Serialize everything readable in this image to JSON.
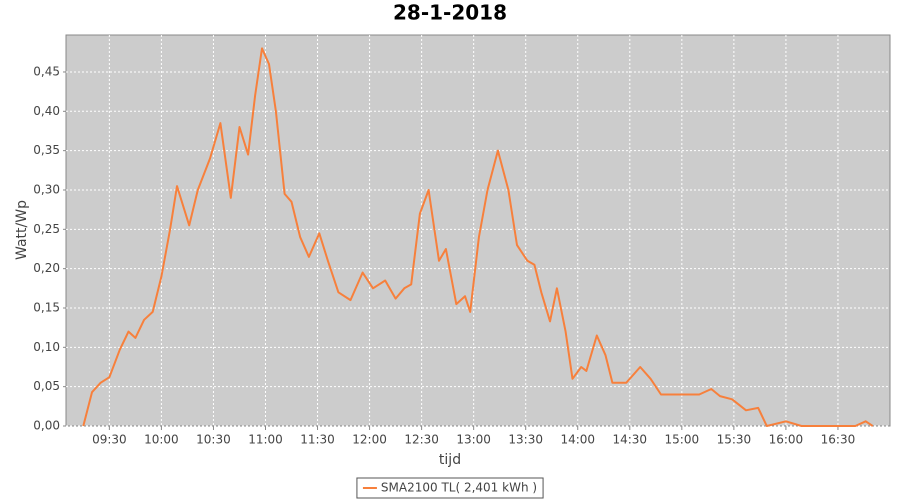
{
  "chart_data": {
    "type": "line",
    "title": "28-1-2018",
    "x_label": "tijd",
    "y_label": "Watt/Wp",
    "x": [
      "09:15",
      "09:20",
      "09:25",
      "09:30",
      "09:36",
      "09:41",
      "09:45",
      "09:50",
      "09:55",
      "10:00",
      "10:05",
      "10:09",
      "10:16",
      "10:21",
      "10:28",
      "10:34",
      "10:40",
      "10:45",
      "10:50",
      "10:54",
      "10:58",
      "11:02",
      "11:06",
      "11:11",
      "11:15",
      "11:20",
      "11:25",
      "11:31",
      "11:36",
      "11:42",
      "11:49",
      "11:56",
      "12:02",
      "12:09",
      "12:15",
      "12:20",
      "12:24",
      "12:29",
      "12:34",
      "12:40",
      "12:44",
      "12:50",
      "12:55",
      "12:58",
      "13:03",
      "13:08",
      "13:14",
      "13:20",
      "13:25",
      "13:31",
      "13:35",
      "13:39",
      "13:44",
      "13:48",
      "13:53",
      "13:57",
      "14:02",
      "14:05",
      "14:11",
      "14:16",
      "14:20",
      "14:28",
      "14:36",
      "14:42",
      "14:48",
      "15:05",
      "15:10",
      "15:17",
      "15:22",
      "15:29",
      "15:37",
      "15:44",
      "15:49",
      "16:00",
      "16:09",
      "16:40",
      "16:46",
      "16:50"
    ],
    "series": [
      {
        "name": "SMA2100 TL( 2,401 kWh )",
        "color": "#f7803c",
        "values": [
          0,
          0.043,
          0.055,
          0.062,
          0.097,
          0.12,
          0.112,
          0.135,
          0.145,
          0.19,
          0.25,
          0.305,
          0.255,
          0.3,
          0.34,
          0.385,
          0.29,
          0.38,
          0.345,
          0.42,
          0.48,
          0.46,
          0.4,
          0.295,
          0.285,
          0.24,
          0.215,
          0.245,
          0.21,
          0.17,
          0.16,
          0.195,
          0.175,
          0.185,
          0.162,
          0.175,
          0.18,
          0.27,
          0.3,
          0.21,
          0.225,
          0.155,
          0.165,
          0.145,
          0.24,
          0.3,
          0.35,
          0.3,
          0.23,
          0.21,
          0.205,
          0.17,
          0.133,
          0.175,
          0.12,
          0.06,
          0.075,
          0.07,
          0.115,
          0.09,
          0.055,
          0.055,
          0.075,
          0.06,
          0.04,
          0.04,
          0.04,
          0.047,
          0.038,
          0.034,
          0.02,
          0.023,
          0,
          0.006,
          0,
          0,
          0.006,
          0
        ]
      }
    ],
    "xlim": [
      "09:05",
      "17:00"
    ],
    "xticks": [
      "09:30",
      "10:00",
      "10:30",
      "11:00",
      "11:30",
      "12:00",
      "12:30",
      "13:00",
      "13:30",
      "14:00",
      "14:30",
      "15:00",
      "15:30",
      "16:00",
      "16:30"
    ],
    "ylim": [
      0,
      0.497
    ],
    "yticks": [
      {
        "value": 0,
        "label": "0,00"
      },
      {
        "value": 0.05,
        "label": "0,05"
      },
      {
        "value": 0.1,
        "label": "0,10"
      },
      {
        "value": 0.15,
        "label": "0,15"
      },
      {
        "value": 0.2,
        "label": "0,20"
      },
      {
        "value": 0.25,
        "label": "0,25"
      },
      {
        "value": 0.3,
        "label": "0,30"
      },
      {
        "value": 0.35,
        "label": "0,35"
      },
      {
        "value": 0.4,
        "label": "0,40"
      },
      {
        "value": 0.45,
        "label": "0,45"
      }
    ],
    "grid": true,
    "plot_background": "#cccccc",
    "legend": "bottom"
  }
}
